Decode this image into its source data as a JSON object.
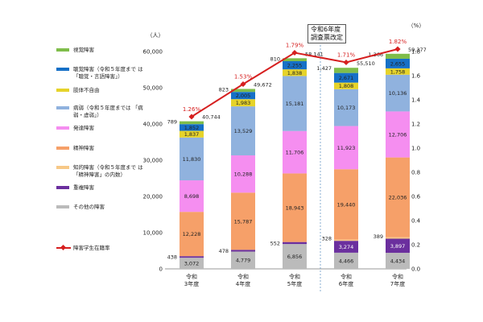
{
  "legend": [
    {
      "key": "visual",
      "label": "視覚障害",
      "color": "#7fbd4a"
    },
    {
      "key": "hearing",
      "label": "聴覚障害（令和５年度まで は「聴覚・言語障害」）",
      "color": "#1670c7"
    },
    {
      "key": "physical",
      "label": "肢体不自由",
      "color": "#e6d32a"
    },
    {
      "key": "illness",
      "label": "病弱（令和５年度までは 「病弱・虚弱」）",
      "color": "#90b2de"
    },
    {
      "key": "developmental",
      "label": "発達障害",
      "color": "#f58ef0"
    },
    {
      "key": "mental",
      "label": "精神障害",
      "color": "#f6a069"
    },
    {
      "key": "intellectual",
      "label": "知的障害（令和５年度まで は「精神障害」の内数）",
      "color": "#f7c887"
    },
    {
      "key": "multiple",
      "label": "重複障害",
      "color": "#6b2f9e"
    },
    {
      "key": "other",
      "label": "その他の障害",
      "color": "#bbbbbb"
    }
  ],
  "rate_legend": {
    "label": "障害学生在籍率",
    "color": "#d61f1f"
  },
  "note": "令和6年度\n調査票改定",
  "chart_data": {
    "type": "bar",
    "stacked": true,
    "categories": [
      "令和\n3年度",
      "令和\n4年度",
      "令和\n5年度",
      "令和\n6年度",
      "令和\n7年度"
    ],
    "y_unit_label": "（人）",
    "y2_unit_label": "（%）",
    "ylim": [
      0,
      60000
    ],
    "yticks": [
      "0",
      "10,000",
      "20,000",
      "30,000",
      "40,000",
      "50,000",
      "60,000"
    ],
    "y2lim": [
      0,
      1.8
    ],
    "y2ticks": [
      "0.0",
      "0.2",
      "0.4",
      "0.6",
      "0.8",
      "1.0",
      "1.2",
      "1.4",
      "1.6",
      "1.8"
    ],
    "series": [
      {
        "key": "other",
        "name": "その他の障害",
        "values": [
          3072,
          4779,
          6856,
          4466,
          4434
        ],
        "labels": [
          "3,072",
          "4,779",
          "6,856",
          "4,466",
          "4,434"
        ]
      },
      {
        "key": "multiple",
        "name": "重複障害",
        "values": [
          438,
          478,
          552,
          3274,
          3897
        ],
        "labels": [
          "438",
          "478",
          "552",
          "3,274",
          "3,897"
        ]
      },
      {
        "key": "intellectual",
        "name": "知的障害（令和５年度まで は「精神障害」の内数）",
        "values": [
          0,
          0,
          0,
          328,
          389
        ],
        "labels": [
          "",
          "",
          "",
          "328",
          "389"
        ]
      },
      {
        "key": "mental",
        "name": "精神障害",
        "values": [
          12228,
          15787,
          18943,
          19440,
          22036
        ],
        "labels": [
          "12,228",
          "15,787",
          "18,943",
          "19,440",
          "22,036"
        ]
      },
      {
        "key": "developmental",
        "name": "発達障害",
        "values": [
          8698,
          10288,
          11706,
          11923,
          12706
        ],
        "labels": [
          "8,698",
          "10,288",
          "11,706",
          "11,923",
          "12,706"
        ]
      },
      {
        "key": "illness",
        "name": "病弱（令和５年度までは 「病弱・虚弱」）",
        "values": [
          11830,
          13529,
          15181,
          10173,
          10136
        ],
        "labels": [
          "11,830",
          "13,529",
          "15,181",
          "10,173",
          "10,136"
        ]
      },
      {
        "key": "physical",
        "name": "肢体不自由",
        "values": [
          1837,
          1983,
          1838,
          1808,
          1758
        ],
        "labels": [
          "1,837",
          "1,983",
          "1,838",
          "1,808",
          "1,758"
        ]
      },
      {
        "key": "hearing",
        "name": "聴覚障害（令和５年度まで は「聴覚・言語障害」）",
        "values": [
          1852,
          2005,
          2255,
          2671,
          2655
        ],
        "labels": [
          "1,852",
          "2,005",
          "2,255",
          "2,671",
          "2,655"
        ]
      },
      {
        "key": "visual",
        "name": "視覚障害",
        "values": [
          789,
          823,
          810,
          1427,
          1366
        ],
        "labels": [
          "789",
          "823",
          "810",
          "1,427",
          "1,366"
        ]
      }
    ],
    "totals": [
      40744,
      49672,
      58141,
      55510,
      59377
    ],
    "total_labels": [
      "40,744",
      "49,672",
      "58,141",
      "55,510",
      "59,377"
    ],
    "rate": {
      "name": "障害学生在籍率",
      "values": [
        1.26,
        1.53,
        1.79,
        1.71,
        1.82
      ],
      "labels": [
        "1.26%",
        "1.53%",
        "1.79%",
        "1.71%",
        "1.82%"
      ]
    }
  }
}
